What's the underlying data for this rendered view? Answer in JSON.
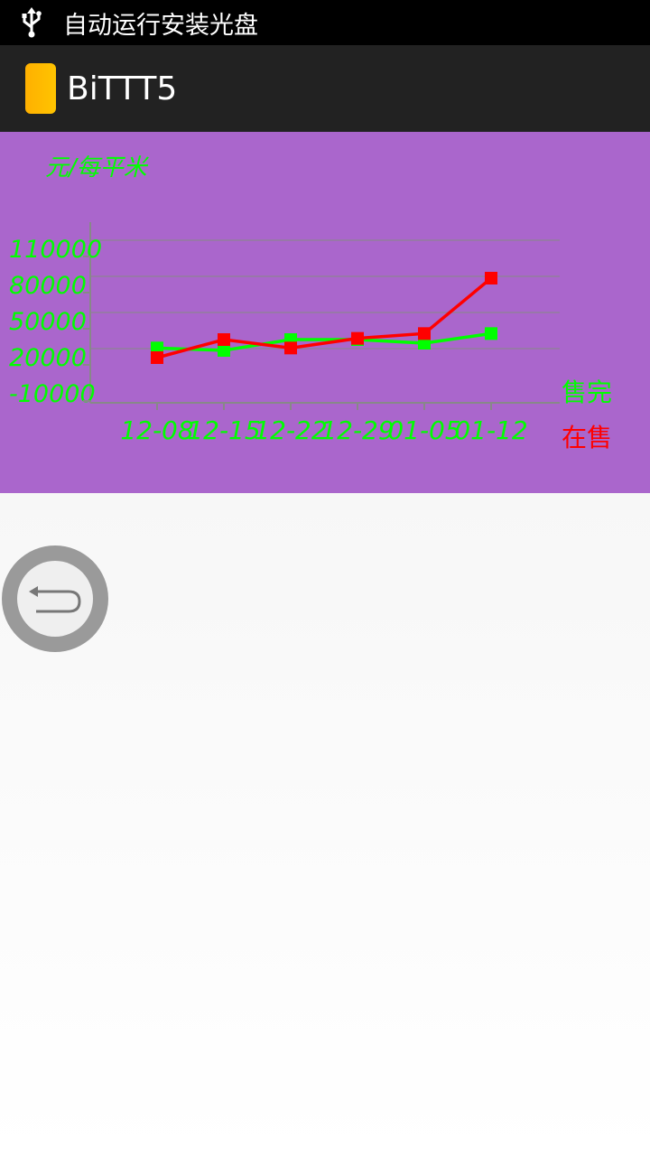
{
  "status_bar": {
    "notification_text": "自动运行安装光盘",
    "icon": "usb-icon"
  },
  "action_bar": {
    "title": "BiTTT5",
    "icon": "app-icon"
  },
  "chart_data": {
    "type": "line",
    "ylabel": "元/每平米",
    "y_ticks": [
      "110000",
      "80000",
      "50000",
      "20000",
      "-10000"
    ],
    "categories": [
      "12-08",
      "12-15",
      "12-22",
      "12-29",
      "01-05",
      "01-12"
    ],
    "ylim": [
      -10000,
      110000
    ],
    "grid": true,
    "legend_position": "right",
    "series": [
      {
        "name": "售完",
        "color": "#00ff00",
        "values": [
          28000,
          26000,
          35000,
          35000,
          32000,
          40000
        ]
      },
      {
        "name": "在售",
        "color": "#ff0000",
        "values": [
          20000,
          35000,
          28000,
          36000,
          40000,
          86000
        ]
      }
    ]
  },
  "colors": {
    "panel_bg": "#aa66cc",
    "axis_text": "#00ff00"
  },
  "back_button": {
    "icon": "back-arrow-icon"
  }
}
